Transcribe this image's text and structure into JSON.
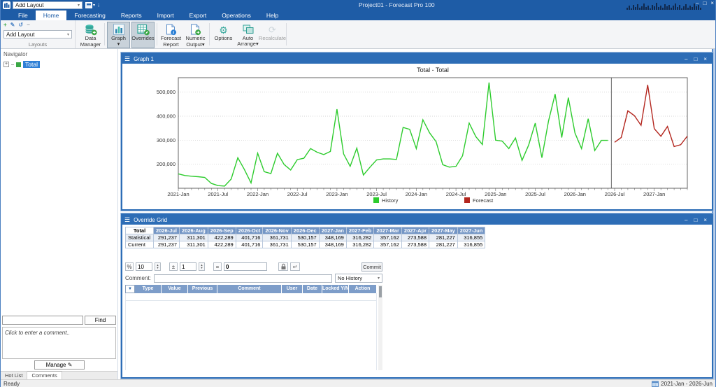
{
  "window": {
    "title": "Project01 - Forecast Pro 100",
    "controls": {
      "minimize": "–",
      "maximize": "□",
      "close": "×"
    }
  },
  "quick_access": {
    "combo_value": "Add Layout"
  },
  "menubar": {
    "tabs": [
      {
        "label": "File",
        "active": false
      },
      {
        "label": "Home",
        "active": true
      },
      {
        "label": "Forecasting",
        "active": false
      },
      {
        "label": "Reports",
        "active": false
      },
      {
        "label": "Import",
        "active": false
      },
      {
        "label": "Export",
        "active": false
      },
      {
        "label": "Operations",
        "active": false
      },
      {
        "label": "Help",
        "active": false
      }
    ]
  },
  "ribbon": {
    "mini_buttons": [
      {
        "name": "add-layout-icon",
        "glyph": "+",
        "color": "#3aa745"
      },
      {
        "name": "edit-layout-icon",
        "glyph": "✎",
        "color": "#5b8ec9"
      },
      {
        "name": "undo-icon",
        "glyph": "↺",
        "color": "#5b8ec9"
      },
      {
        "name": "remove-layout-icon",
        "glyph": "−",
        "color": "#98a2ab"
      }
    ],
    "layout_combo": "Add Layout",
    "group_label": "Layouts",
    "buttons": [
      {
        "label_lines": [
          "Data",
          "Manager"
        ],
        "icon": "database-icon",
        "pressed": false,
        "disabled": false,
        "dropdown": false
      },
      {
        "label_lines": [
          "Graph"
        ],
        "icon": "bar-chart-icon",
        "pressed": true,
        "disabled": false,
        "dropdown": true
      },
      {
        "label_lines": [
          "Overrides"
        ],
        "icon": "table-edit-icon",
        "pressed": true,
        "disabled": false,
        "dropdown": false
      },
      {
        "label_lines": [
          "Forecast",
          "Report"
        ],
        "icon": "report-info-icon",
        "pressed": false,
        "disabled": false,
        "dropdown": false
      },
      {
        "label_lines": [
          "Numeric",
          "Output"
        ],
        "icon": "numeric-output-icon",
        "pressed": false,
        "disabled": false,
        "dropdown": true
      },
      {
        "label_lines": [
          "Options"
        ],
        "icon": "gear-icon",
        "pressed": false,
        "disabled": false,
        "dropdown": false
      },
      {
        "label_lines": [
          "Auto",
          "Arrange"
        ],
        "icon": "arrange-windows-icon",
        "pressed": false,
        "disabled": false,
        "dropdown": true
      },
      {
        "label_lines": [
          "Recalculate"
        ],
        "icon": "recalculate-icon",
        "pressed": false,
        "disabled": true,
        "dropdown": false
      }
    ]
  },
  "navigator": {
    "header": "Navigator",
    "tree": [
      {
        "label": "Total",
        "selected": true,
        "icon": "green-square-icon"
      }
    ],
    "find_button": "Find",
    "comment_placeholder": "Click to enter a comment..",
    "manage_button": "Manage ✎",
    "tabs": [
      {
        "label": "Hot List",
        "active": false
      },
      {
        "label": "Comments",
        "active": true
      }
    ]
  },
  "graph_window": {
    "title": "Graph 1"
  },
  "override_window": {
    "title": "Override Grid",
    "forecast_table": {
      "corner": "Total",
      "columns": [
        "2026-Jul",
        "2026-Aug",
        "2026-Sep",
        "2026-Oct",
        "2026-Nov",
        "2026-Dec",
        "2027-Jan",
        "2027-Feb",
        "2027-Mar",
        "2027-Apr",
        "2027-May",
        "2027-Jun"
      ],
      "rows": [
        {
          "label": "Statistical",
          "values": [
            "291,237",
            "311,301",
            "422,289",
            "401,716",
            "361,731",
            "530,157",
            "348,169",
            "316,282",
            "357,162",
            "273,588",
            "281,227",
            "316,855"
          ]
        },
        {
          "label": "Current",
          "values": [
            "291,237",
            "311,301",
            "422,289",
            "401,716",
            "361,731",
            "530,157",
            "348,169",
            "316,282",
            "357,162",
            "273,588",
            "281,227",
            "316,855"
          ]
        }
      ]
    },
    "toolbar": {
      "percent_label": "%",
      "percent_value": "10",
      "plusminus_label": "±",
      "plusminus_value": "1",
      "equals_label": "=",
      "equals_value": "0",
      "commit_label": "Commit",
      "comment_label": "Comment:",
      "comment_value": "",
      "history_dropdown": "No History"
    },
    "log_columns": [
      "Type",
      "Value",
      "Previous",
      "Comment",
      "User",
      "Date",
      "Locked Y/N",
      "Action"
    ]
  },
  "status": {
    "ready": "Ready",
    "date_range": "2021-Jan - 2026-Jun"
  },
  "chart_data": {
    "type": "line",
    "title": "Total - Total",
    "xlabel": "",
    "ylabel": "",
    "ylim": [
      100000,
      560000
    ],
    "yticks": [
      200000,
      300000,
      400000,
      500000
    ],
    "grid": "dotted-horizontal",
    "legend_position": "bottom-center",
    "xtick_labels": [
      "2021-Jan",
      "2021-Jul",
      "2022-Jan",
      "2022-Jul",
      "2023-Jan",
      "2023-Jul",
      "2024-Jan",
      "2024-Jul",
      "2025-Jan",
      "2025-Jul",
      "2026-Jan",
      "2026-Jul",
      "2027-Jan"
    ],
    "x_start": "2021-Jan",
    "history_forecast_boundary": "2026-Jun/2026-Jul",
    "series": [
      {
        "name": "History",
        "color": "#2ecc2e",
        "values": [
          160000,
          153000,
          150000,
          148000,
          145000,
          120000,
          111000,
          109000,
          138000,
          227000,
          178000,
          122000,
          246000,
          169000,
          161000,
          246000,
          199000,
          176000,
          219000,
          225000,
          265000,
          250000,
          240000,
          253000,
          429000,
          243000,
          191000,
          267000,
          155000,
          188000,
          218000,
          222000,
          222000,
          220000,
          353000,
          345000,
          265000,
          385000,
          331000,
          294000,
          198000,
          188000,
          191000,
          235000,
          371000,
          315000,
          282000,
          540000,
          300000,
          296000,
          265000,
          309000,
          216000,
          280000,
          371000,
          227000,
          380000,
          492000,
          311000,
          477000,
          330000,
          265000,
          389000,
          257000,
          299000,
          299000
        ]
      },
      {
        "name": "Forecast",
        "color": "#b3261e",
        "values": [
          291237,
          311301,
          422289,
          401716,
          361731,
          530157,
          348169,
          316282,
          357162,
          273588,
          281227,
          316855
        ]
      }
    ]
  }
}
